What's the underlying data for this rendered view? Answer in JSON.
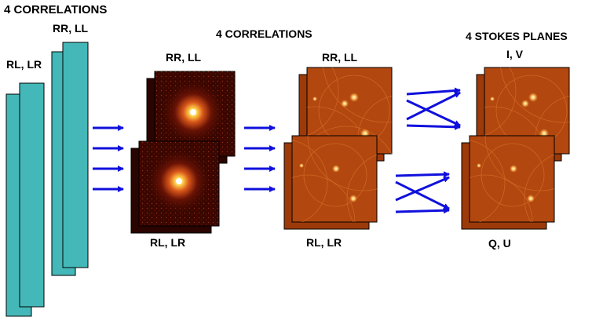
{
  "labels": {
    "top_left": "4  CORRELATIONS",
    "mid_title": "4 CORRELATIONS",
    "right_title": "4 STOKES PLANES",
    "vis_rr_ll": "RR, LL",
    "vis_rl_lr": "RL, LR",
    "psf_rr_ll": "RR, LL",
    "psf_rl_lr": "RL, LR",
    "img_rr_ll": "RR, LL",
    "img_rl_lr": "RL, LR",
    "stokes_iv": "I, V",
    "stokes_qu": "Q, U"
  },
  "colors": {
    "visibility_slab": "#44b8b8",
    "arrow": "#1010dd",
    "psf_background": "#3a0600",
    "psf_core": "#fff6b0",
    "image_background": "#b2470f",
    "image_source": "#ffe6a0",
    "outline": "#000000"
  }
}
